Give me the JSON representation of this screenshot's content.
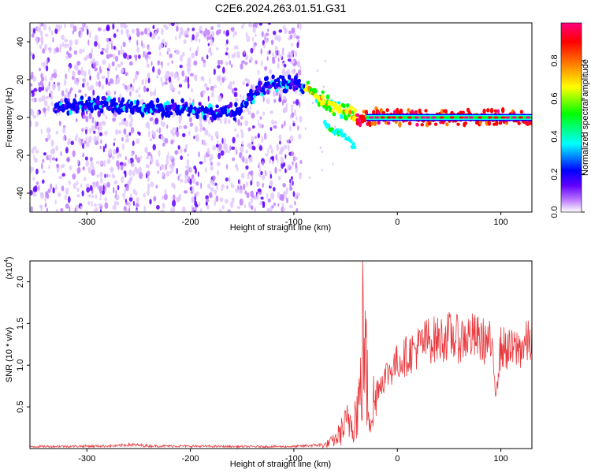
{
  "title": "C2E6.2024.263.01.51.G31",
  "chart_data": [
    {
      "type": "heatmap",
      "xlabel": "Height of straight line (km)",
      "ylabel": "Frequency (Hz)",
      "xlim": [
        -355,
        130
      ],
      "ylim": [
        -50,
        50
      ],
      "xticks": [
        -300,
        -200,
        -100,
        0,
        100
      ],
      "yticks": [
        -40,
        -20,
        0,
        20,
        40
      ],
      "colorbar": {
        "label": "Normalized spectral amplitude",
        "range": [
          0,
          1
        ],
        "ticks": [
          "0.0",
          "0.2",
          "0.4",
          "0.6",
          "0.8"
        ],
        "colors": [
          "#ffffff",
          "#c080ff",
          "#6000ff",
          "#0000ff",
          "#00ffff",
          "#00ff00",
          "#ffff00",
          "#ff8000",
          "#ff0000",
          "#ff0080"
        ]
      },
      "noise_region": {
        "x": [
          -355,
          -93
        ],
        "y": [
          -50,
          50
        ]
      },
      "features": [
        {
          "name": "main-trace",
          "points": [
            [
              -330,
              6
            ],
            [
              -290,
              7
            ],
            [
              -260,
              5
            ],
            [
              -230,
              5
            ],
            [
              -200,
              5
            ],
            [
              -175,
              2
            ],
            [
              -155,
              3
            ],
            [
              -130,
              16
            ],
            [
              -120,
              18
            ],
            [
              -100,
              18
            ],
            [
              -90,
              16
            ],
            [
              -80,
              12
            ],
            [
              -70,
              9
            ],
            [
              -60,
              5
            ],
            [
              -50,
              3
            ],
            [
              -40,
              0
            ],
            [
              -30,
              0
            ],
            [
              -20,
              1
            ],
            [
              0,
              0
            ],
            [
              50,
              0
            ],
            [
              90,
              0
            ],
            [
              130,
              0
            ]
          ]
        },
        {
          "name": "branch-trace",
          "points": [
            [
              -70,
              -4
            ],
            [
              -60,
              -7
            ],
            [
              -50,
              -10
            ],
            [
              -45,
              -14
            ],
            [
              -40,
              -15
            ]
          ]
        }
      ]
    },
    {
      "type": "line",
      "xlabel": "Height of straight line (km)",
      "ylabel": "SNR (10 * v/v)",
      "scale_note": "(x10",
      "scale_exp": "4",
      "xlim": [
        -355,
        130
      ],
      "ylim": [
        0,
        2.25
      ],
      "xticks": [
        -300,
        -200,
        -100,
        0,
        100
      ],
      "yticks": [
        "0.5",
        "1.0",
        "1.5",
        "2.0"
      ],
      "color": "#e8383d",
      "envelope": [
        [
          -355,
          0.03
        ],
        [
          -270,
          0.04
        ],
        [
          -260,
          0.06
        ],
        [
          -240,
          0.04
        ],
        [
          -150,
          0.03
        ],
        [
          -100,
          0.03
        ],
        [
          -70,
          0.06
        ],
        [
          -60,
          0.15
        ],
        [
          -50,
          0.4
        ],
        [
          -40,
          0.6
        ],
        [
          -35,
          1.0
        ],
        [
          -33,
          2.15
        ],
        [
          -28,
          0.7
        ],
        [
          -20,
          0.8
        ],
        [
          -10,
          1.0
        ],
        [
          0,
          1.15
        ],
        [
          10,
          1.25
        ],
        [
          20,
          1.35
        ],
        [
          30,
          1.45
        ],
        [
          40,
          1.45
        ],
        [
          50,
          1.5
        ],
        [
          60,
          1.45
        ],
        [
          70,
          1.5
        ],
        [
          80,
          1.45
        ],
        [
          90,
          1.4
        ],
        [
          95,
          0.8
        ],
        [
          100,
          1.35
        ],
        [
          110,
          1.3
        ],
        [
          120,
          1.35
        ],
        [
          130,
          1.45
        ]
      ]
    }
  ]
}
